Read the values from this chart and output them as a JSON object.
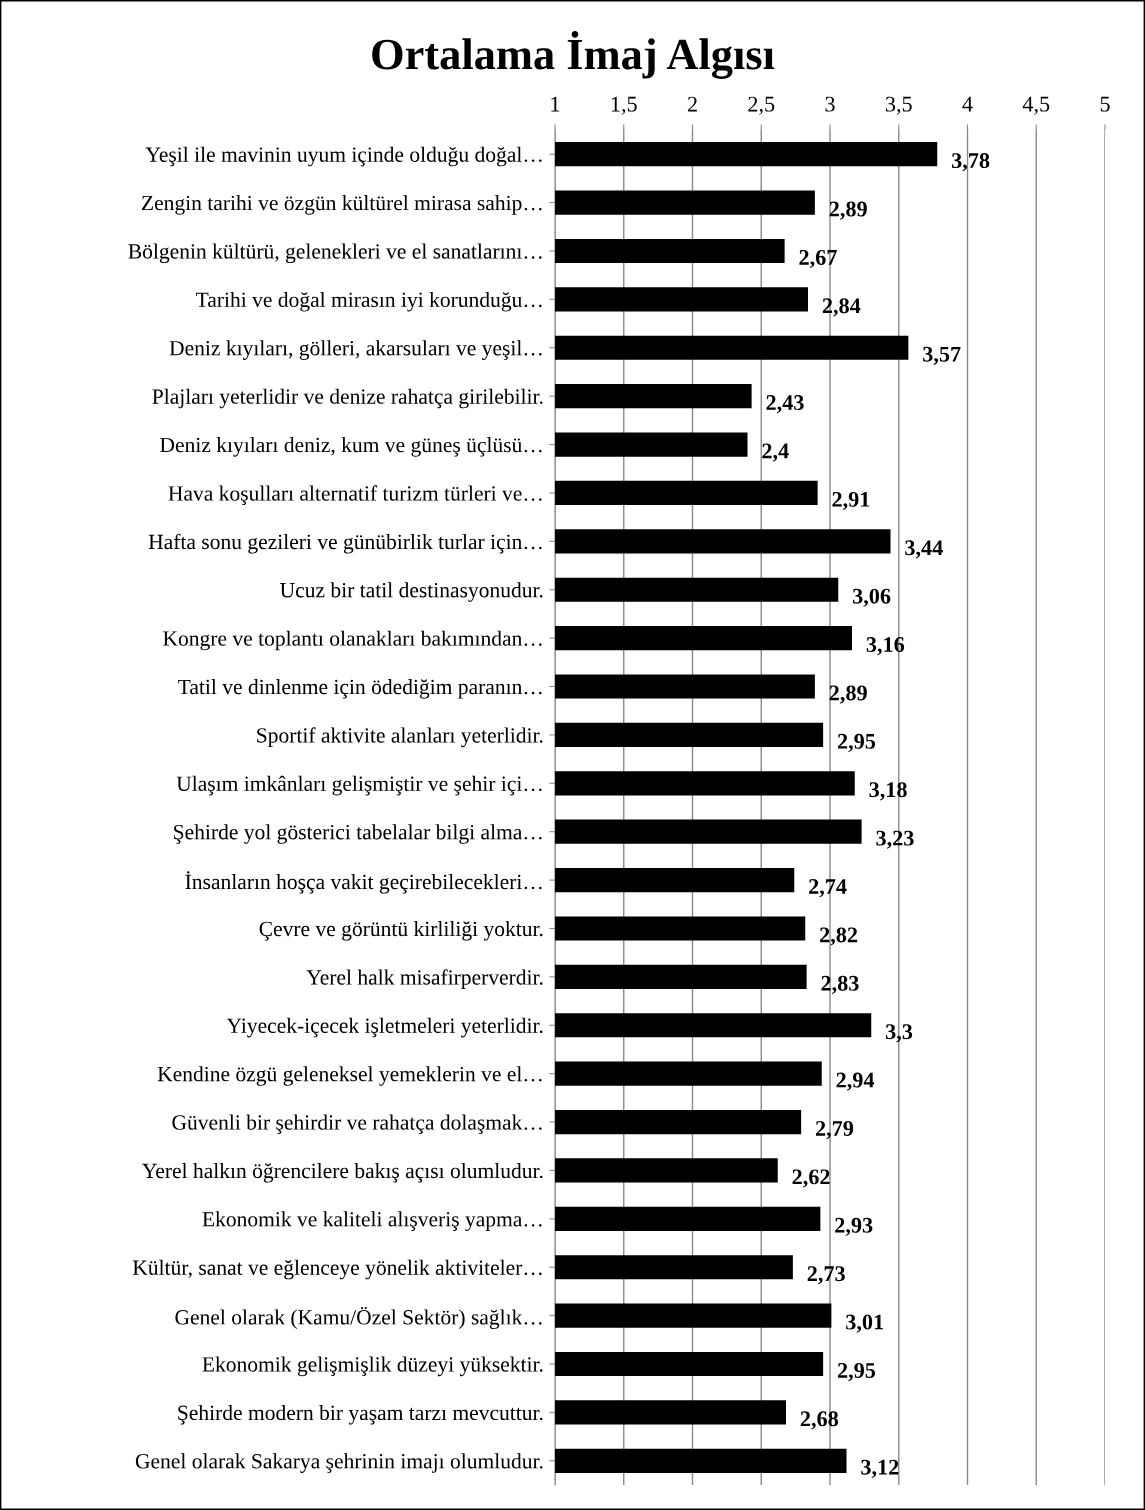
{
  "chart_data": {
    "type": "bar",
    "orientation": "horizontal",
    "title": "Ortalama İmaj Algısı",
    "categories": [
      "Yeşil ile mavinin uyum içinde olduğu doğal…",
      "Zengin tarihi ve özgün kültürel mirasa sahip…",
      "Bölgenin kültürü, gelenekleri ve el sanatlarını…",
      "Tarihi ve doğal mirasın iyi korunduğu…",
      "Deniz kıyıları, gölleri, akarsuları ve yeşil…",
      "Plajları yeterlidir ve denize rahatça girilebilir.",
      "Deniz kıyıları deniz, kum ve güneş üçlüsü…",
      "Hava koşulları alternatif turizm türleri ve…",
      "Hafta sonu gezileri ve günübirlik turlar için…",
      "Ucuz bir tatil destinasyonudur.",
      "Kongre ve toplantı olanakları bakımından…",
      "Tatil ve dinlenme için ödediğim paranın…",
      "Sportif aktivite alanları yeterlidir.",
      "Ulaşım imkânları gelişmiştir ve şehir içi…",
      "Şehirde yol gösterici tabelalar bilgi alma…",
      "İnsanların hoşça vakit geçirebilecekleri…",
      "Çevre ve görüntü kirliliği yoktur.",
      "Yerel halk misafirperverdir.",
      "Yiyecek-içecek işletmeleri yeterlidir.",
      "Kendine özgü geleneksel yemeklerin ve el…",
      "Güvenli bir şehirdir ve rahatça dolaşmak…",
      "Yerel halkın öğrencilere bakış açısı olumludur.",
      "Ekonomik ve kaliteli alışveriş yapma…",
      "Kültür, sanat ve eğlenceye yönelik aktiviteler…",
      "Genel olarak (Kamu/Özel Sektör) sağlık…",
      "Ekonomik gelişmişlik düzeyi yüksektir.",
      "Şehirde modern bir yaşam tarzı mevcuttur.",
      "Genel olarak Sakarya şehrinin imajı olumludur."
    ],
    "values": [
      3.78,
      2.89,
      2.67,
      2.84,
      3.57,
      2.43,
      2.4,
      2.91,
      3.44,
      3.06,
      3.16,
      2.89,
      2.95,
      3.18,
      3.23,
      2.74,
      2.82,
      2.83,
      3.3,
      2.94,
      2.79,
      2.62,
      2.93,
      2.73,
      3.01,
      2.95,
      2.68,
      3.12
    ],
    "value_labels": [
      "3,78",
      "2,89",
      "2,67",
      "2,84",
      "3,57",
      "2,43",
      "2,4",
      "2,91",
      "3,44",
      "3,06",
      "3,16",
      "2,89",
      "2,95",
      "3,18",
      "3,23",
      "2,74",
      "2,82",
      "2,83",
      "3,3",
      "2,94",
      "2,79",
      "2,62",
      "2,93",
      "2,73",
      "3,01",
      "2,95",
      "2,68",
      "3,12"
    ],
    "color": "#000000",
    "xlim": [
      1,
      5
    ],
    "xticks": [
      1,
      {
        "value": 1.5,
        "label": "1,5"
      },
      2,
      {
        "value": 2.5,
        "label": "2,5"
      },
      3,
      {
        "value": 3.5,
        "label": "3,5"
      },
      4,
      {
        "value": 4.5,
        "label": "4,5"
      },
      5
    ],
    "grid": "x"
  }
}
